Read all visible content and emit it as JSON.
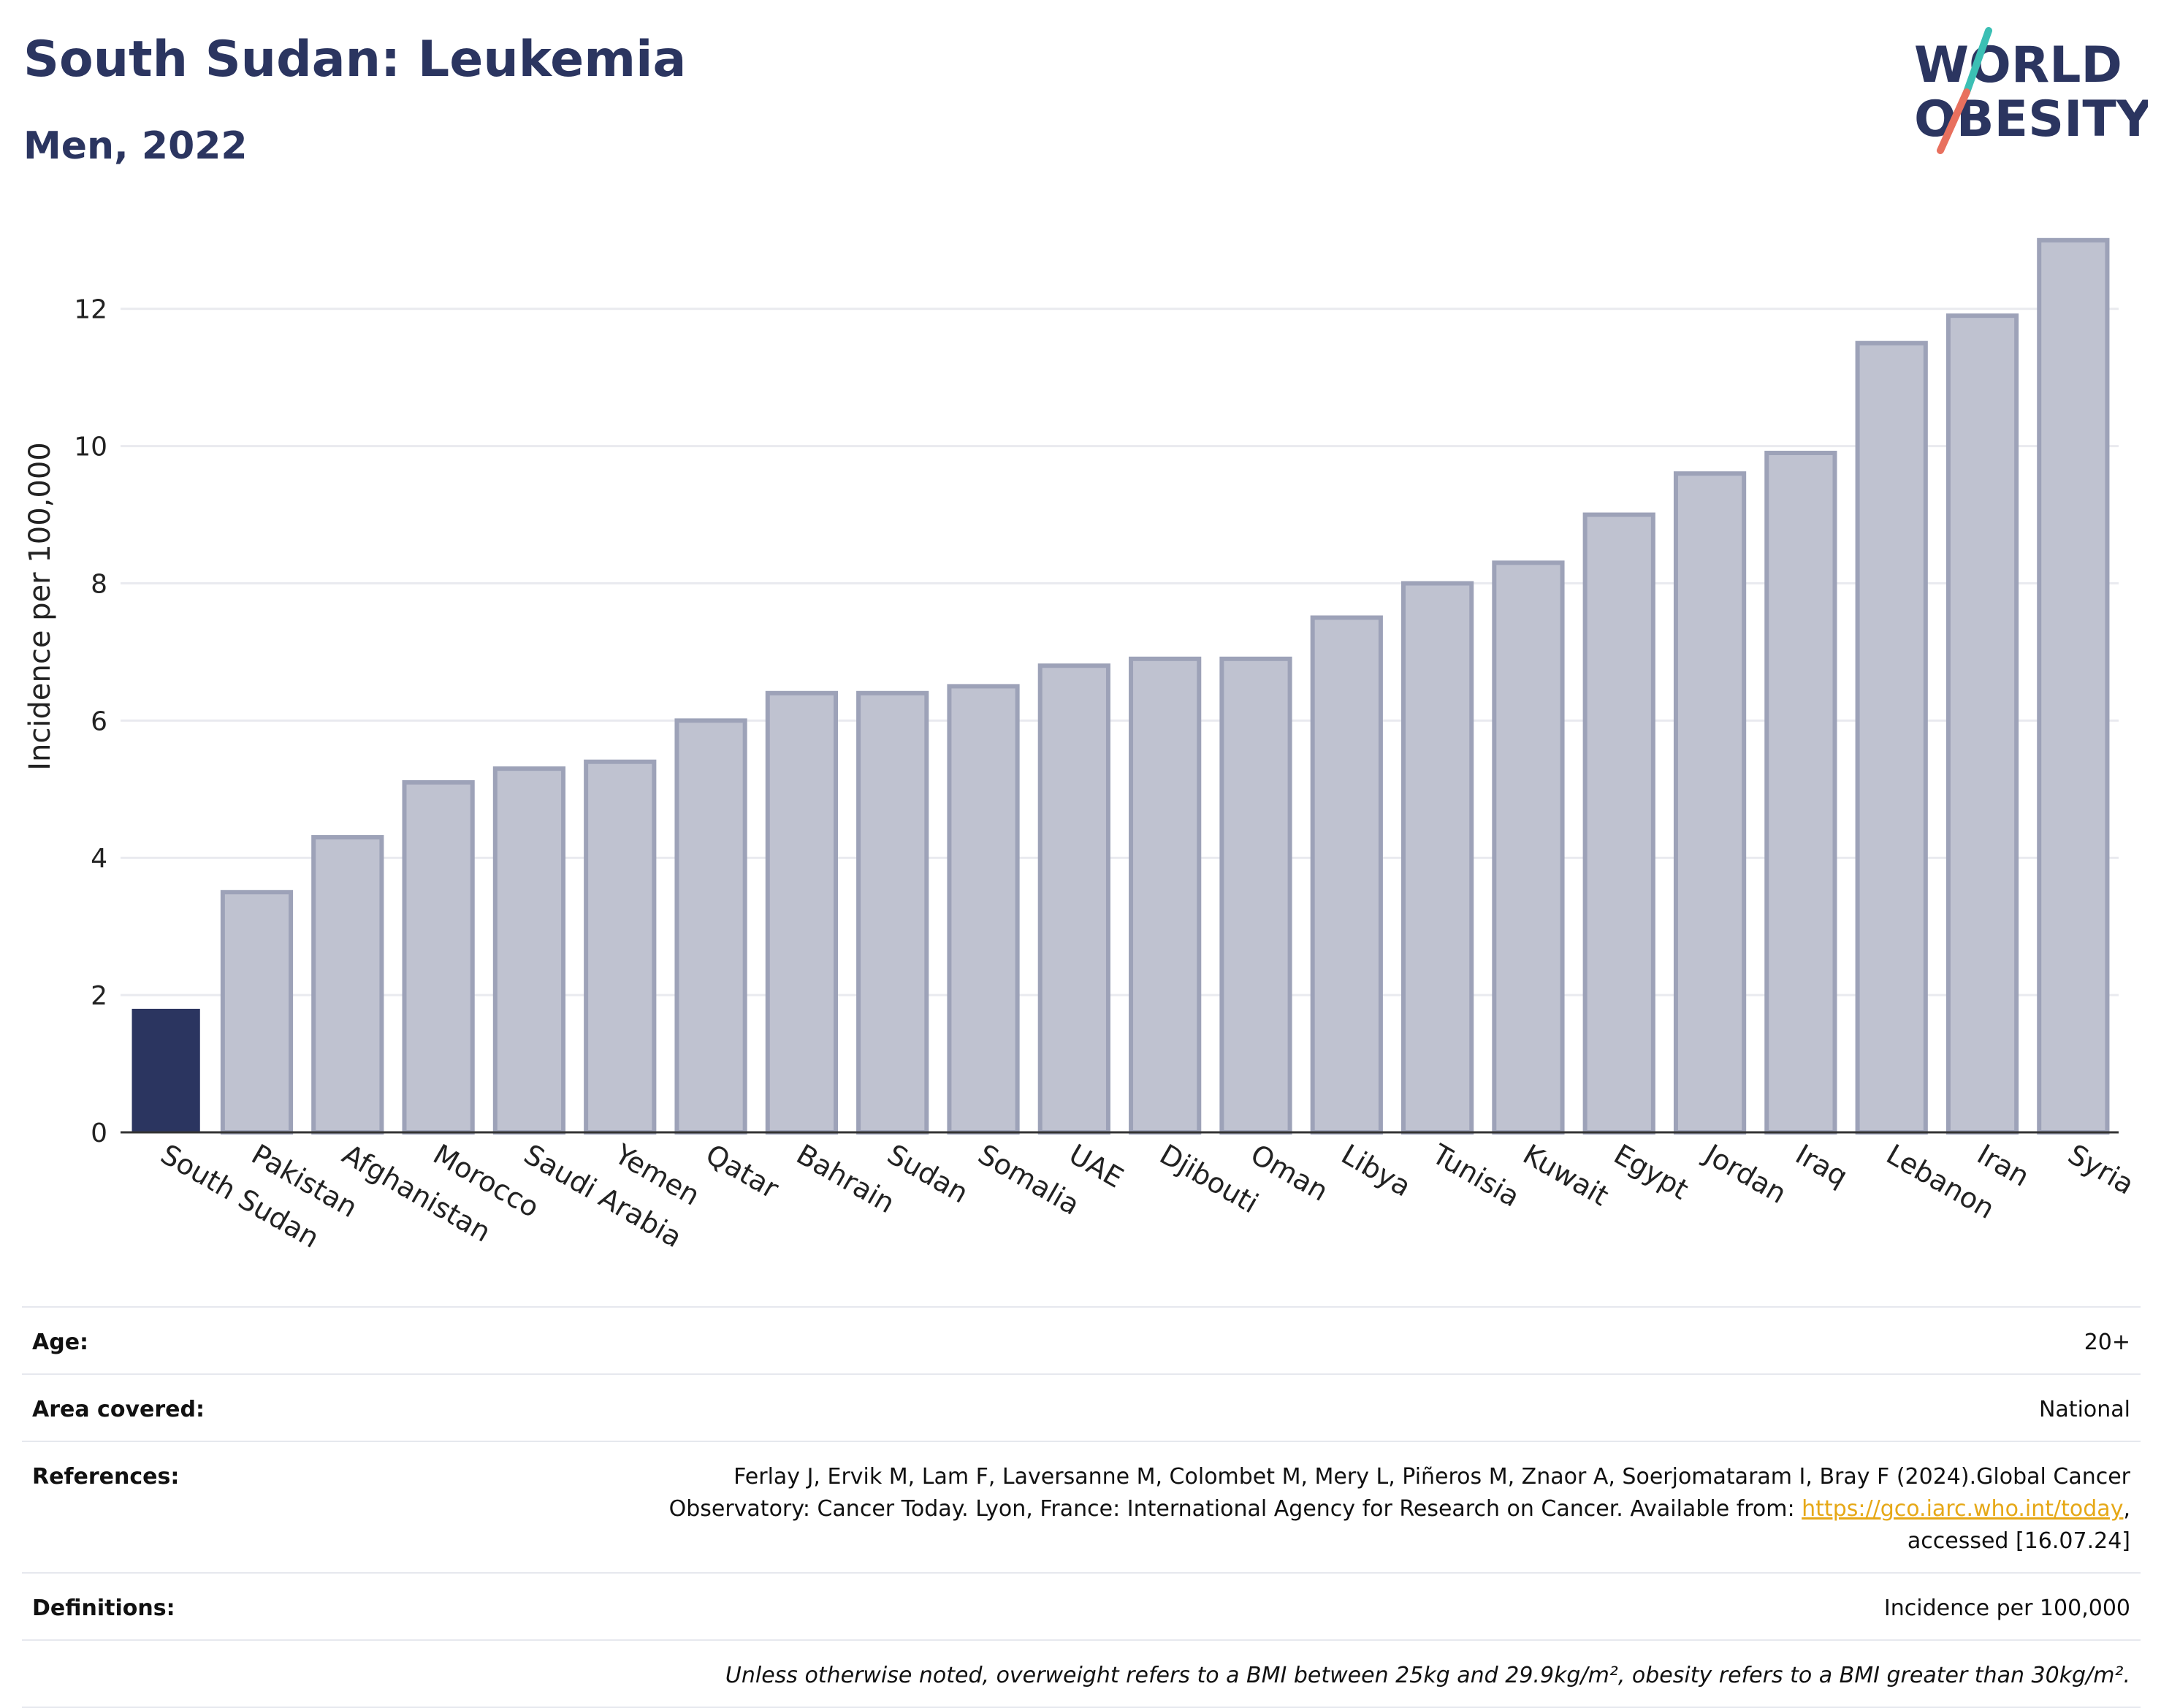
{
  "header": {
    "title": "South Sudan: Leukemia",
    "subtitle": "Men, 2022"
  },
  "logo": {
    "line1": "WORLD",
    "line2": "OBESITY",
    "colors": {
      "text": "#2b3560",
      "slash_top": "#3bbfb4",
      "slash_bottom": "#e8705e"
    }
  },
  "chart_data": {
    "type": "bar",
    "categories": [
      "South Sudan",
      "Pakistan",
      "Afghanistan",
      "Morocco",
      "Saudi Arabia",
      "Yemen",
      "Qatar",
      "Bahrain",
      "Sudan",
      "Somalia",
      "UAE",
      "Djibouti",
      "Oman",
      "Libya",
      "Tunisia",
      "Kuwait",
      "Egypt",
      "Jordan",
      "Iraq",
      "Lebanon",
      "Iran",
      "Syria"
    ],
    "values": [
      1.8,
      3.5,
      4.3,
      5.1,
      5.3,
      5.4,
      6.0,
      6.4,
      6.4,
      6.5,
      6.8,
      6.9,
      6.9,
      7.5,
      8.0,
      8.3,
      9.0,
      9.6,
      9.9,
      11.5,
      11.9,
      13.0
    ],
    "highlight": "South Sudan",
    "ylabel": "Incidence per 100,000",
    "ylim": [
      0,
      13.2
    ],
    "yticks": [
      0,
      2,
      4,
      6,
      8,
      10,
      12
    ],
    "grid": true,
    "colors": {
      "highlight": "#2b3560",
      "bar_fill": "#bfc2d0",
      "bar_edge": "#9da2b8",
      "grid": "#e9eaef"
    }
  },
  "info": {
    "age_label": "Age:",
    "age_value": "20+",
    "area_label": "Area covered:",
    "area_value": "National",
    "references_label": "References:",
    "references_line1": "Ferlay J, Ervik M, Lam F, Laversanne M, Colombet M, Mery L, Piñeros M, Znaor A, Soerjomataram I, Bray F (2024).Global Cancer",
    "references_line2": "Observatory: Cancer Today. Lyon, France: International Agency for Research on Cancer. Available from: ",
    "references_link": "https://gco.iarc.who.int/today",
    "references_line2_end": ",",
    "references_line3": "accessed [16.07.24]",
    "definitions_label": "Definitions:",
    "definitions_value": "Incidence per 100,000",
    "note": "Unless otherwise noted, overweight refers to a BMI between 25kg and 29.9kg/m², obesity refers to a BMI greater than 30kg/m²."
  }
}
